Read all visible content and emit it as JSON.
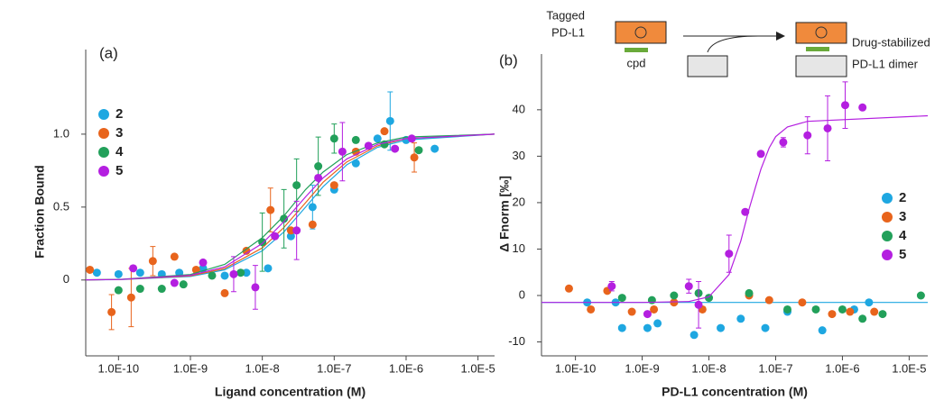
{
  "chart_data": [
    {
      "type": "scatter",
      "panel": "(a)",
      "ylabel": "Fraction Bound",
      "xlabel": "Ligand concentration (M)",
      "log_x": true,
      "xlim": [
        3.5e-11,
        1.7e-05
      ],
      "ylim": [
        -0.52,
        1.58
      ],
      "xticks": [
        {
          "value": 1e-10,
          "label": "1.0E-10"
        },
        {
          "value": 1e-09,
          "label": "1.0E-9"
        },
        {
          "value": 1e-08,
          "label": "1.0E-8"
        },
        {
          "value": 1e-07,
          "label": "1.0E-7"
        },
        {
          "value": 1e-06,
          "label": "1.0E-6"
        },
        {
          "value": 1e-05,
          "label": "1.0E-5"
        }
      ],
      "yticks": [
        0,
        0.5,
        {
          "value": 1,
          "label": "1.0"
        }
      ],
      "legend": "upper left",
      "fit_x": [
        3.5e-11,
        1e-10,
        1e-09,
        3e-09,
        1e-08,
        2e-08,
        4e-08,
        7e-08,
        1.5e-07,
        4e-07,
        1e-06,
        1.7e-05
      ],
      "series": [
        {
          "name": "2",
          "color": "#1ea7e1",
          "x": [
            5e-11,
            1e-10,
            2e-10,
            4e-10,
            7e-10,
            1.5e-09,
            3e-09,
            6e-09,
            1.2e-08,
            2.5e-08,
            5e-08,
            1e-07,
            2e-07,
            4e-07,
            6e-07,
            1e-06,
            2.5e-06
          ],
          "values": [
            0.05,
            0.04,
            0.05,
            0.04,
            0.05,
            0.08,
            0.03,
            0.05,
            0.08,
            0.3,
            0.5,
            0.62,
            0.8,
            0.97,
            1.09,
            0.96,
            0.9
          ],
          "errors": [
            null,
            null,
            null,
            null,
            null,
            null,
            null,
            null,
            null,
            null,
            0.15,
            null,
            null,
            null,
            0.2,
            null,
            null
          ],
          "fit_values": [
            0.001,
            0.0025,
            0.024,
            0.07,
            0.2,
            0.33,
            0.5,
            0.64,
            0.79,
            0.91,
            0.96,
            1.0
          ]
        },
        {
          "name": "3",
          "color": "#e8641c",
          "x": [
            4e-11,
            8e-11,
            1.5e-10,
            3e-10,
            6e-10,
            1.2e-09,
            3e-09,
            6e-09,
            1.3e-08,
            2.5e-08,
            5e-08,
            1e-07,
            2e-07,
            5e-07,
            1.3e-06
          ],
          "values": [
            0.07,
            -0.22,
            -0.12,
            0.13,
            0.16,
            0.07,
            -0.09,
            0.2,
            0.48,
            0.34,
            0.38,
            0.65,
            0.88,
            1.02,
            0.84
          ],
          "errors": [
            null,
            0.12,
            0.2,
            0.1,
            null,
            null,
            null,
            null,
            0.15,
            null,
            null,
            null,
            null,
            null,
            0.1
          ],
          "fit_values": [
            0.001,
            0.003,
            0.028,
            0.079,
            0.22,
            0.36,
            0.53,
            0.67,
            0.81,
            0.92,
            0.97,
            1.0
          ]
        },
        {
          "name": "4",
          "color": "#22a05a",
          "x": [
            1e-10,
            2e-10,
            4e-10,
            8e-10,
            2e-09,
            5e-09,
            1e-08,
            2e-08,
            3e-08,
            6e-08,
            1e-07,
            2e-07,
            5e-07,
            1.5e-06
          ],
          "values": [
            -0.07,
            -0.06,
            -0.06,
            -0.03,
            0.03,
            0.05,
            0.26,
            0.42,
            0.65,
            0.78,
            0.97,
            0.96,
            0.93,
            0.89
          ],
          "errors": [
            null,
            null,
            null,
            null,
            null,
            null,
            0.2,
            0.2,
            0.18,
            0.2,
            0.1,
            null,
            null,
            null
          ],
          "fit_values": [
            0.001,
            0.004,
            0.038,
            0.107,
            0.29,
            0.44,
            0.62,
            0.74,
            0.86,
            0.94,
            0.98,
            1.0
          ]
        },
        {
          "name": "5",
          "color": "#b41fe0",
          "x": [
            1.6e-10,
            6e-10,
            1.5e-09,
            4e-09,
            8e-09,
            1.5e-08,
            3e-08,
            6e-08,
            1.3e-07,
            3e-07,
            7e-07,
            1.2e-06
          ],
          "values": [
            0.08,
            -0.02,
            0.12,
            0.04,
            -0.05,
            0.3,
            0.34,
            0.7,
            0.88,
            0.92,
            0.9,
            0.97
          ],
          "errors": [
            null,
            null,
            null,
            0.12,
            0.15,
            null,
            0.2,
            null,
            0.2,
            null,
            null,
            null
          ],
          "fit_values": [
            0.001,
            0.003,
            0.032,
            0.09,
            0.25,
            0.4,
            0.57,
            0.7,
            0.83,
            0.93,
            0.97,
            1.0
          ]
        }
      ]
    },
    {
      "type": "scatter",
      "panel": "(b)",
      "ylabel": "Δ Fnorm [‰]",
      "xlabel": "PD-L1 concentration (M)",
      "log_x": true,
      "xlim": [
        3.1e-11,
        1.9e-05
      ],
      "ylim": [
        -13,
        52
      ],
      "xticks": [
        {
          "value": 1e-10,
          "label": "1.0E-10"
        },
        {
          "value": 1e-09,
          "label": "1.0E-9"
        },
        {
          "value": 1e-08,
          "label": "1.0E-8"
        },
        {
          "value": 1e-07,
          "label": "1.0E-7"
        },
        {
          "value": 1e-06,
          "label": "1.0E-6"
        },
        {
          "value": 1e-05,
          "label": "1.0E-5"
        }
      ],
      "yticks": [
        -10,
        0,
        10,
        20,
        30,
        40
      ],
      "legend": "center right",
      "fit_x": [
        3.1e-11,
        1e-09,
        5e-09,
        1e-08,
        2e-08,
        3e-08,
        4e-08,
        5e-08,
        6e-08,
        8e-08,
        1e-07,
        1.5e-07,
        3e-07,
        1.9e-05
      ],
      "series": [
        {
          "name": "2",
          "color": "#1ea7e1",
          "x": [
            1.5e-10,
            4e-10,
            5e-10,
            1.2e-09,
            1.7e-09,
            6e-09,
            1.5e-08,
            3e-08,
            7e-08,
            1.5e-07,
            5e-07,
            1.5e-06,
            2.5e-06
          ],
          "values": [
            -1.5,
            -1.5,
            -7,
            -7,
            -6,
            -8.5,
            -7,
            -5,
            -7,
            -3.5,
            -7.5,
            -3,
            -1.5
          ],
          "fit_values": [
            -1.5,
            -1.5,
            -1.5,
            -1.5,
            -1.5,
            -1.5,
            -1.5,
            -1.5,
            -1.5,
            -1.5,
            -1.5,
            -1.5,
            -1.5,
            -1.5
          ]
        },
        {
          "name": "3",
          "color": "#e8641c",
          "x": [
            8e-11,
            1.7e-10,
            3e-10,
            7e-10,
            1.5e-09,
            3e-09,
            8e-09,
            4e-08,
            8e-08,
            2.5e-07,
            7e-07,
            1.3e-06,
            3e-06
          ],
          "values": [
            1.5,
            -3,
            1,
            -3.5,
            -3,
            -1.5,
            -3,
            0,
            -1,
            -1.5,
            -4,
            -3.5,
            -3.5
          ]
        },
        {
          "name": "4",
          "color": "#22a05a",
          "x": [
            5e-10,
            1.4e-09,
            3e-09,
            7e-09,
            1e-08,
            4e-08,
            1.5e-07,
            4e-07,
            1e-06,
            2e-06,
            4e-06,
            1.5e-05
          ],
          "values": [
            -0.5,
            -1,
            0,
            0.5,
            -0.5,
            0.5,
            -3,
            -3,
            -3,
            -5,
            -4,
            0
          ]
        },
        {
          "name": "5",
          "color": "#b41fe0",
          "x": [
            3.5e-10,
            1.2e-09,
            5e-09,
            7e-09,
            2e-08,
            3.5e-08,
            6e-08,
            1.3e-07,
            3e-07,
            6e-07,
            1.1e-06,
            2e-06
          ],
          "values": [
            2,
            -4,
            2,
            -2,
            9,
            18,
            30.5,
            33,
            34.5,
            36,
            41,
            40.5
          ],
          "errors": [
            1,
            null,
            1.5,
            5,
            4,
            null,
            null,
            1,
            4,
            7,
            5,
            null
          ],
          "fit_values": [
            -1.5,
            -1.5,
            -1.3,
            -0.3,
            4.5,
            11.7,
            18.6,
            23.4,
            27.2,
            31.8,
            34.2,
            36.3,
            37.5,
            38.7
          ]
        }
      ]
    }
  ],
  "diagram": {
    "tagged": "Tagged",
    "tagged_name": "PD-L1",
    "compound": "cpd",
    "result": "Drug-stabilized",
    "result_name": "PD-L1 dimer"
  }
}
